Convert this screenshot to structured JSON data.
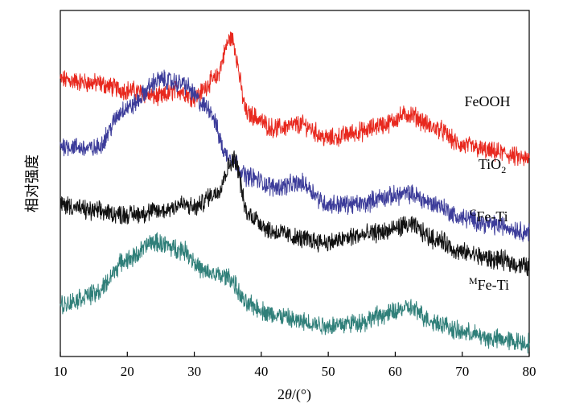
{
  "chart_data": {
    "type": "line",
    "title": "",
    "xlabel": "2θ/(°)",
    "ylabel": "相对强度",
    "xlim": [
      10,
      80
    ],
    "x_ticks": [
      "10",
      "20",
      "30",
      "40",
      "50",
      "60",
      "70",
      "80"
    ],
    "y_ticks": false,
    "grid": false,
    "legend": "inline-right",
    "series": [
      {
        "name": "FeOOH",
        "color": "#e8281e",
        "x": [
          10,
          15,
          20,
          25,
          27.5,
          30,
          33,
          35.5,
          38,
          42,
          46,
          50,
          55,
          58,
          62,
          66,
          70,
          75,
          80
        ],
        "y": [
          0.8,
          0.79,
          0.77,
          0.75,
          0.77,
          0.75,
          0.8,
          0.92,
          0.7,
          0.66,
          0.67,
          0.63,
          0.65,
          0.67,
          0.7,
          0.66,
          0.61,
          0.59,
          0.57
        ],
        "label": {
          "base": "FeOOH",
          "pre": "",
          "sub": "",
          "sup": ""
        }
      },
      {
        "name": "TiO2",
        "color": "#3c3c9a",
        "x": [
          10,
          15,
          20,
          25,
          28,
          32,
          35,
          38,
          42,
          46,
          50,
          55,
          58,
          62,
          66,
          70,
          75,
          80
        ],
        "y": [
          0.61,
          0.6,
          0.72,
          0.8,
          0.79,
          0.72,
          0.58,
          0.52,
          0.49,
          0.5,
          0.44,
          0.44,
          0.46,
          0.47,
          0.44,
          0.4,
          0.38,
          0.36
        ],
        "label": {
          "base": "TiO",
          "pre": "",
          "sub": "2",
          "sup": ""
        }
      },
      {
        "name": "CFe-Ti",
        "color": "#111111",
        "x": [
          10,
          15,
          20,
          25,
          28,
          30,
          33,
          36,
          38,
          42,
          46,
          50,
          55,
          58,
          62,
          66,
          70,
          75,
          80
        ],
        "y": [
          0.44,
          0.42,
          0.41,
          0.42,
          0.44,
          0.43,
          0.47,
          0.57,
          0.41,
          0.36,
          0.34,
          0.33,
          0.35,
          0.36,
          0.38,
          0.34,
          0.3,
          0.28,
          0.26
        ],
        "label": {
          "base": "Fe-Ti",
          "pre": "C",
          "sub": "",
          "sup": ""
        }
      },
      {
        "name": "MFe-Ti",
        "color": "#2f7f79",
        "x": [
          10,
          15,
          20,
          24,
          28,
          32,
          35,
          38,
          42,
          46,
          50,
          55,
          58,
          62,
          66,
          70,
          75,
          80
        ],
        "y": [
          0.15,
          0.18,
          0.28,
          0.33,
          0.31,
          0.24,
          0.23,
          0.15,
          0.12,
          0.1,
          0.09,
          0.1,
          0.12,
          0.14,
          0.1,
          0.07,
          0.05,
          0.04
        ],
        "label": {
          "base": "Fe-Ti",
          "pre": "M",
          "sub": "",
          "sup": ""
        }
      }
    ]
  }
}
